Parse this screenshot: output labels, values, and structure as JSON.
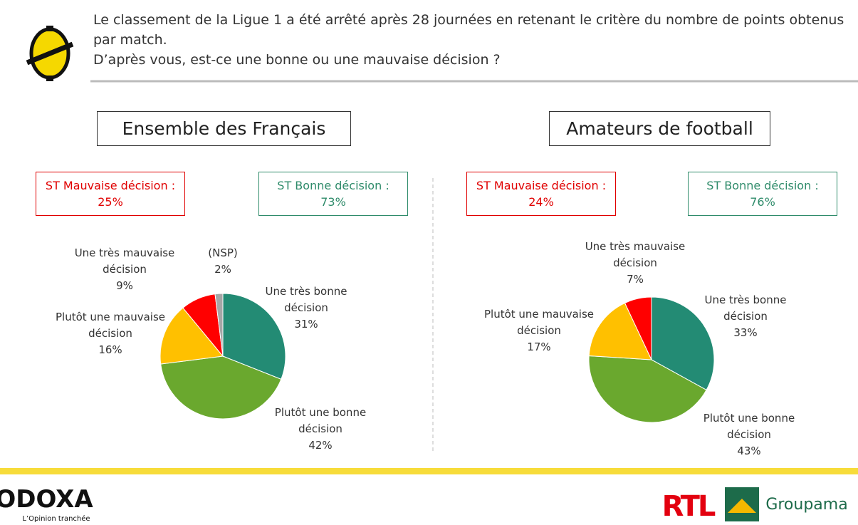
{
  "header": {
    "question": [
      "Le classement de la Ligue 1 a été arrêté après 28 journées en retenant le critère du nombre de points obtenus par match.",
      "D’après vous, est-ce une bonne ou une mauvaise décision ?"
    ]
  },
  "chart_data": [
    {
      "type": "pie",
      "title": "Ensemble des Français",
      "summary_labels": [
        "ST Mauvaise décision :",
        "ST Bonne décision :"
      ],
      "summary_values": [
        25,
        73
      ],
      "summary_value_labels": [
        "25%",
        "73%"
      ],
      "summary_colors": [
        "#e00000",
        "#2e8b6a"
      ],
      "categories": [
        "Une très bonne décision",
        "Plutôt une bonne décision",
        "Plutôt une mauvaise décision",
        "Une très mauvaise décision",
        "(NSP)"
      ],
      "values": [
        31,
        42,
        16,
        9,
        2
      ],
      "value_labels": [
        "31%",
        "42%",
        "16%",
        "9%",
        "2%"
      ],
      "colors": [
        "#238b74",
        "#6aa82e",
        "#ffc000",
        "#ff0000",
        "#a6a6a6"
      ]
    },
    {
      "type": "pie",
      "title": "Amateurs de football",
      "summary_labels": [
        "ST Mauvaise décision :",
        "ST Bonne décision :"
      ],
      "summary_values": [
        24,
        76
      ],
      "summary_value_labels": [
        "24%",
        "76%"
      ],
      "summary_colors": [
        "#e00000",
        "#2e8b6a"
      ],
      "categories": [
        "Une très bonne décision",
        "Plutôt une bonne décision",
        "Plutôt une mauvaise décision",
        "Une très mauvaise décision"
      ],
      "values": [
        33,
        43,
        17,
        7
      ],
      "value_labels": [
        "33%",
        "43%",
        "17%",
        "7%"
      ],
      "colors": [
        "#238b74",
        "#6aa82e",
        "#ffc000",
        "#ff0000"
      ]
    }
  ],
  "footer": {
    "brand": "ODOXA",
    "tagline": "L’Opinion tranchée",
    "partner_1": "RTL",
    "partner_2": "Groupama"
  }
}
